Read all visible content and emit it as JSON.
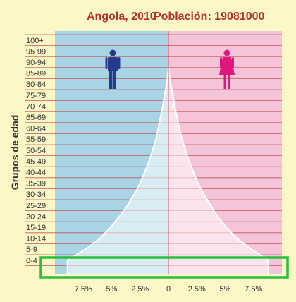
{
  "chart_data": {
    "type": "population-pyramid",
    "title": "Angola, 2010",
    "subtitle": "Población: 19081000",
    "ylabel": "Grupos de edad",
    "xlabel": "",
    "x_unit": "%",
    "xlim": [
      -10,
      10
    ],
    "x_ticks": [
      {
        "value": -7.5,
        "label": "7.5%"
      },
      {
        "value": -5,
        "label": "5%"
      },
      {
        "value": -2.5,
        "label": "2.5%"
      },
      {
        "value": 0,
        "label": "0"
      },
      {
        "value": 2.5,
        "label": "2.5%"
      },
      {
        "value": 5,
        "label": "5%"
      },
      {
        "value": 7.5,
        "label": "7.5%"
      }
    ],
    "categories": [
      "0-4",
      "5-9",
      "10-14",
      "15-19",
      "20-24",
      "25-29",
      "30-34",
      "35-39",
      "40-44",
      "45-49",
      "50-54",
      "55-59",
      "60-64",
      "65-69",
      "70-74",
      "75-79",
      "80-84",
      "85-89",
      "90-94",
      "95-99",
      "100+"
    ],
    "series": [
      {
        "name": "",
        "side": "left",
        "color": "#a8d4e6",
        "values": [
          8.9,
          7.3,
          6.0,
          5.1,
          4.3,
          3.6,
          3.0,
          2.5,
          2.1,
          1.7,
          1.4,
          1.1,
          0.9,
          0.7,
          0.5,
          0.35,
          0.15,
          0,
          0,
          0,
          0
        ]
      },
      {
        "name": "",
        "side": "right",
        "color": "#f6c4d8",
        "values": [
          8.8,
          7.3,
          6.0,
          5.1,
          4.3,
          3.7,
          3.1,
          2.6,
          2.2,
          1.8,
          1.5,
          1.2,
          0.95,
          0.75,
          0.55,
          0.4,
          0.2,
          0,
          0,
          0,
          0
        ]
      }
    ],
    "icons": {
      "left": "male-icon",
      "right": "female-icon"
    },
    "colors": {
      "male_background": "#a8d4e6",
      "female_background": "#f6c4d8",
      "pyramid_fill": "#ffffff",
      "gridline": "#c1575b",
      "title": "#b5312f",
      "male_icon": "#243b8c",
      "female_icon": "#e0167f",
      "highlight": "#2bbe3c"
    },
    "highlight_category": "0-4",
    "grid": true
  }
}
